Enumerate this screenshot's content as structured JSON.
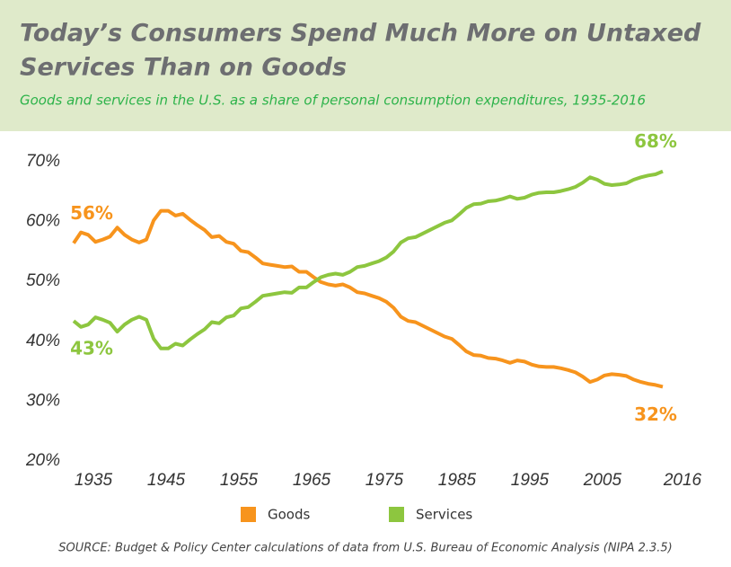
{
  "chart_data": {
    "type": "line",
    "title_lines": [
      "Today’s Consumers Spend Much More on Untaxed",
      "Services Than on Goods"
    ],
    "subtitle": "Goods and services in the U.S. as a share of personal consumption expenditures, 1935-2016",
    "source": "SOURCE: Budget & Policy Center calculations of data from U.S. Bureau of Economic Analysis (NIPA 2.3.5)",
    "x": [
      1935,
      1936,
      1937,
      1938,
      1939,
      1940,
      1941,
      1942,
      1943,
      1944,
      1945,
      1946,
      1947,
      1948,
      1949,
      1950,
      1951,
      1952,
      1953,
      1954,
      1955,
      1956,
      1957,
      1958,
      1959,
      1960,
      1961,
      1962,
      1963,
      1964,
      1965,
      1966,
      1967,
      1968,
      1969,
      1970,
      1971,
      1972,
      1973,
      1974,
      1975,
      1976,
      1977,
      1978,
      1979,
      1980,
      1981,
      1982,
      1983,
      1984,
      1985,
      1986,
      1987,
      1988,
      1989,
      1990,
      1991,
      1992,
      1993,
      1994,
      1995,
      1996,
      1997,
      1998,
      1999,
      2000,
      2001,
      2002,
      2003,
      2004,
      2005,
      2006,
      2007,
      2008,
      2009,
      2010,
      2011,
      2012,
      2013,
      2014,
      2015,
      2016
    ],
    "xlim": [
      1935,
      2016
    ],
    "xticks": [
      1935,
      1945,
      1955,
      1965,
      1975,
      1985,
      1995,
      2005,
      2016
    ],
    "ylim": [
      20,
      70
    ],
    "yticks": [
      {
        "value": 20,
        "label": "20%"
      },
      {
        "value": 30,
        "label": "30%"
      },
      {
        "value": 40,
        "label": "40%"
      },
      {
        "value": 50,
        "label": "50%"
      },
      {
        "value": 60,
        "label": "60%"
      },
      {
        "value": 70,
        "label": "70%"
      }
    ],
    "legend": "bottom",
    "series": [
      {
        "name": "Goods",
        "color": "#f7941d",
        "values": [
          56.4,
          58.2,
          57.8,
          56.6,
          57,
          57.5,
          59,
          57.8,
          57,
          56.5,
          57,
          60.2,
          61.8,
          61.8,
          61,
          61.3,
          60.3,
          59.4,
          58.6,
          57.4,
          57.6,
          56.6,
          56.3,
          55.1,
          54.9,
          54,
          53,
          52.8,
          52.6,
          52.4,
          52.5,
          51.6,
          51.6,
          50.7,
          49.9,
          49.5,
          49.3,
          49.5,
          49,
          48.2,
          48,
          47.6,
          47.2,
          46.6,
          45.6,
          44.1,
          43.4,
          43.2,
          42.6,
          42,
          41.4,
          40.8,
          40.4,
          39.4,
          38.3,
          37.7,
          37.6,
          37.2,
          37.1,
          36.8,
          36.4,
          36.8,
          36.6,
          36.1,
          35.8,
          35.7,
          35.7,
          35.5,
          35.2,
          34.8,
          34.1,
          33.2,
          33.6,
          34.3,
          34.5,
          34.4,
          34.2,
          33.6,
          33.2,
          32.9,
          32.7,
          32.4
        ],
        "value_labels": [
          "56%",
          null,
          null,
          null,
          null,
          null,
          null,
          null,
          null,
          null,
          null,
          null,
          null,
          null,
          null,
          null,
          null,
          null,
          null,
          null,
          null,
          null,
          null,
          null,
          null,
          null,
          null,
          null,
          null,
          null,
          null,
          null,
          null,
          null,
          null,
          null,
          null,
          null,
          null,
          null,
          null,
          null,
          null,
          null,
          null,
          null,
          null,
          null,
          null,
          null,
          null,
          null,
          null,
          null,
          null,
          null,
          null,
          null,
          null,
          null,
          null,
          null,
          null,
          null,
          null,
          null,
          null,
          null,
          null,
          null,
          null,
          null,
          null,
          null,
          null,
          null,
          null,
          null,
          null,
          null,
          null,
          "32%"
        ]
      },
      {
        "name": "Services",
        "color": "#8dc63f",
        "values": [
          43.4,
          42.4,
          42.8,
          44,
          43.6,
          43.1,
          41.6,
          42.8,
          43.6,
          44.1,
          43.6,
          40.4,
          38.8,
          38.8,
          39.6,
          39.3,
          40.3,
          41.2,
          42,
          43.2,
          43,
          44,
          44.3,
          45.5,
          45.7,
          46.6,
          47.6,
          47.8,
          48,
          48.2,
          48.1,
          49,
          49,
          49.9,
          50.7,
          51.1,
          51.3,
          51.1,
          51.6,
          52.4,
          52.6,
          53,
          53.4,
          54,
          55,
          56.5,
          57.2,
          57.4,
          58,
          58.6,
          59.2,
          59.8,
          60.2,
          61.2,
          62.3,
          62.9,
          63,
          63.4,
          63.5,
          63.8,
          64.2,
          63.8,
          64,
          64.5,
          64.8,
          64.9,
          64.9,
          65.1,
          65.4,
          65.8,
          66.5,
          67.4,
          67,
          66.3,
          66.1,
          66.2,
          66.4,
          67,
          67.4,
          67.7,
          67.9,
          68.4
        ],
        "value_labels": [
          "43%",
          null,
          null,
          null,
          null,
          null,
          null,
          null,
          null,
          null,
          null,
          null,
          null,
          null,
          null,
          null,
          null,
          null,
          null,
          null,
          null,
          null,
          null,
          null,
          null,
          null,
          null,
          null,
          null,
          null,
          null,
          null,
          null,
          null,
          null,
          null,
          null,
          null,
          null,
          null,
          null,
          null,
          null,
          null,
          null,
          null,
          null,
          null,
          null,
          null,
          null,
          null,
          null,
          null,
          null,
          null,
          null,
          null,
          null,
          null,
          null,
          null,
          null,
          null,
          null,
          null,
          null,
          null,
          null,
          null,
          null,
          null,
          null,
          null,
          null,
          null,
          null,
          null,
          null,
          null,
          null,
          "68%"
        ]
      }
    ]
  }
}
